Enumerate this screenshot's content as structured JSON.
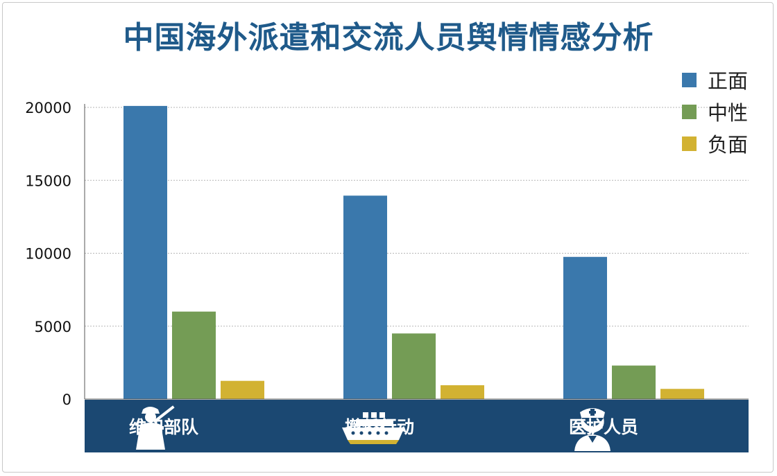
{
  "chart_data": {
    "type": "bar",
    "title": "中国海外派遣和交流人员舆情情感分析",
    "categories": [
      "维和部队",
      "撤侨行动",
      "医护人员"
    ],
    "series": [
      {
        "name": "正面",
        "color": "#3a78ac",
        "values": [
          20100,
          13950,
          9750
        ]
      },
      {
        "name": "中性",
        "color": "#749c55",
        "values": [
          6000,
          4500,
          2300
        ]
      },
      {
        "name": "负面",
        "color": "#d2b232",
        "values": [
          1250,
          950,
          700
        ]
      }
    ],
    "ylim": [
      0,
      20000
    ],
    "yticks": [
      0,
      5000,
      10000,
      15000,
      20000
    ],
    "grid": true,
    "legend_position": "top-right"
  },
  "icons": [
    "soldier-icon",
    "ship-icon",
    "nurse-icon"
  ]
}
